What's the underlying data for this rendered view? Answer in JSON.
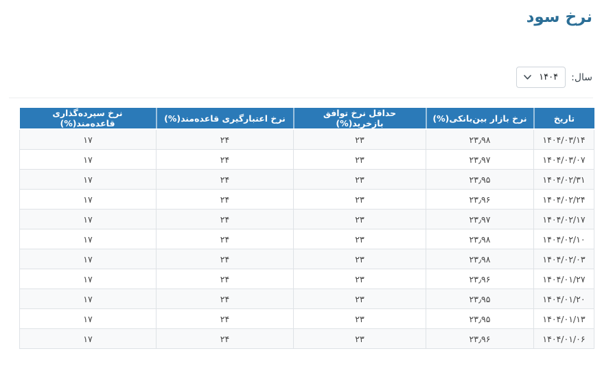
{
  "title": "نرخ سود",
  "filter": {
    "year_label": "سال:",
    "year_value": "۱۴۰۴"
  },
  "colors": {
    "header_bg": "#2b7ab8",
    "title_text": "#2b6e96",
    "row_stripe": "#f8f9fa",
    "cell_border": "#dee2e6"
  },
  "table": {
    "headers": [
      "تاریخ",
      "نرخ بازار بین‌بانکی(%)",
      "حداقل نرخ توافق بازخرید(%)",
      "نرخ اعتبارگیری قاعده‌مند(%)",
      "نرخ سپرده‌گذاری قاعده‌مند(%)"
    ],
    "rows": [
      [
        "۱۴۰۴/۰۳/۱۴",
        "۲۳٫۹۸",
        "۲۳",
        "۲۴",
        "۱۷"
      ],
      [
        "۱۴۰۴/۰۳/۰۷",
        "۲۳٫۹۷",
        "۲۳",
        "۲۴",
        "۱۷"
      ],
      [
        "۱۴۰۴/۰۲/۳۱",
        "۲۳٫۹۵",
        "۲۳",
        "۲۴",
        "۱۷"
      ],
      [
        "۱۴۰۴/۰۲/۲۴",
        "۲۳٫۹۶",
        "۲۳",
        "۲۴",
        "۱۷"
      ],
      [
        "۱۴۰۴/۰۲/۱۷",
        "۲۳٫۹۷",
        "۲۳",
        "۲۴",
        "۱۷"
      ],
      [
        "۱۴۰۴/۰۲/۱۰",
        "۲۳٫۹۸",
        "۲۳",
        "۲۴",
        "۱۷"
      ],
      [
        "۱۴۰۴/۰۲/۰۳",
        "۲۳٫۹۸",
        "۲۳",
        "۲۴",
        "۱۷"
      ],
      [
        "۱۴۰۴/۰۱/۲۷",
        "۲۳٫۹۶",
        "۲۳",
        "۲۴",
        "۱۷"
      ],
      [
        "۱۴۰۴/۰۱/۲۰",
        "۲۳٫۹۵",
        "۲۳",
        "۲۴",
        "۱۷"
      ],
      [
        "۱۴۰۴/۰۱/۱۳",
        "۲۳٫۹۵",
        "۲۳",
        "۲۴",
        "۱۷"
      ],
      [
        "۱۴۰۴/۰۱/۰۶",
        "۲۳٫۹۶",
        "۲۳",
        "۲۴",
        "۱۷"
      ]
    ]
  }
}
